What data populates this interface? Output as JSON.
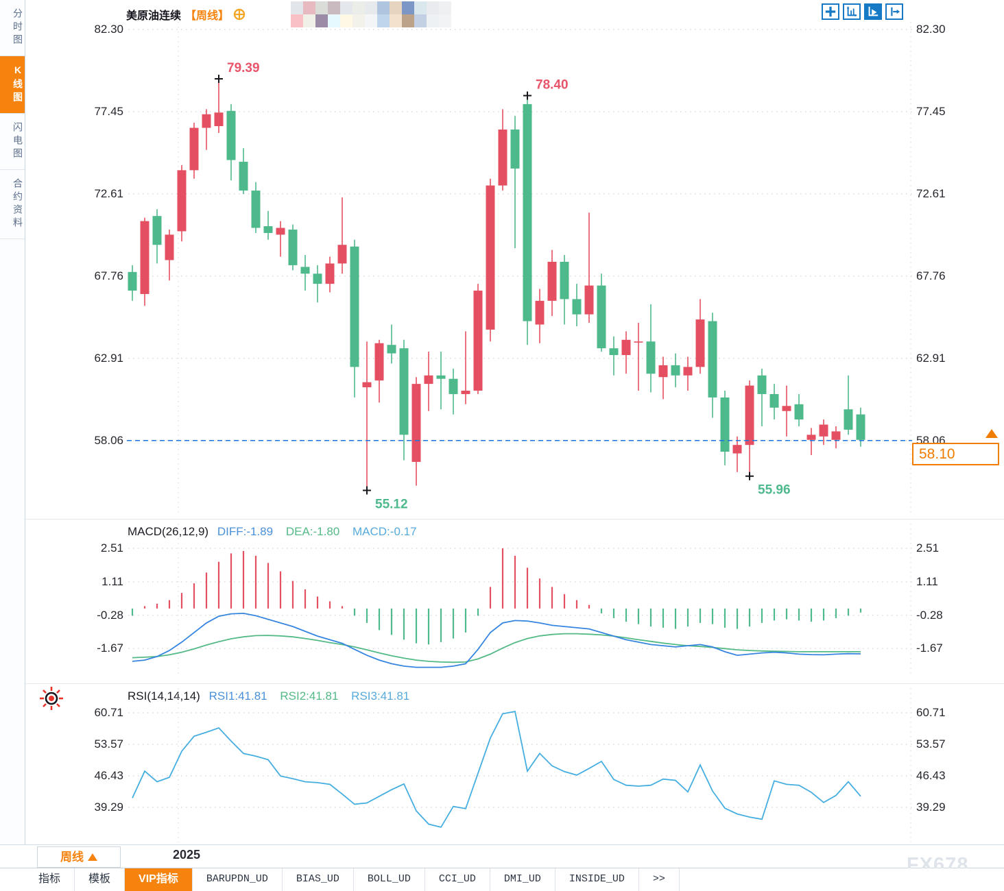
{
  "sidebar": {
    "tabs": [
      {
        "label": "分时图",
        "active": false
      },
      {
        "label": "K线图",
        "active": true
      },
      {
        "label": "闪电图",
        "active": false
      },
      {
        "label": "合约资料",
        "active": false
      }
    ]
  },
  "header": {
    "title": "美原油连续",
    "period": "【周线】"
  },
  "toolbar": {
    "icons": [
      "move-tool",
      "axis-scale-tool",
      "axis-play-tool",
      "send-right-tool"
    ],
    "active_icon": "axis-play-tool"
  },
  "price_box": {
    "value": "58.10"
  },
  "macd_header": {
    "name": "MACD(26,12,9)",
    "diff": "DIFF:-1.89",
    "dea": "DEA:-1.80",
    "macd": "MACD:-0.17"
  },
  "rsi_header": {
    "name": "RSI(14,14,14)",
    "rsi1": "RSI1:41.81",
    "rsi2": "RSI2:41.81",
    "rsi3": "RSI3:41.81"
  },
  "footer": {
    "timeframe_button": {
      "label": "周线"
    },
    "year_label": "2025",
    "tabs": [
      "指标",
      "模板",
      "VIP指标",
      "BARUPDN_UD",
      "BIAS_UD",
      "BOLL_UD",
      "CCI_UD",
      "DMI_UD",
      "INSIDE_UD",
      ">>"
    ],
    "active_tab": "VIP指标",
    "watermark": "FX678"
  },
  "colors": {
    "up": "#e45061",
    "down": "#4eb98b",
    "diff_line": "#3585e0",
    "dea_line": "#53b987",
    "rsi_line": "#45aee0",
    "accent_orange": "#f5830d",
    "current_price_line": "#1a73e2",
    "annotation_red": "#e8546a",
    "annotation_green": "#4db98c",
    "toolbar_blue": "#1679c6",
    "grid": "#d9d9d9"
  },
  "redacted_mosaic": {
    "colors": [
      "#e2e5ea",
      "#e7b9c0",
      "#d9dcd7",
      "#c9bac0",
      "#e4e7ec",
      "#eaede8",
      "#e7eaed",
      "#afc5df",
      "#e7d4be",
      "#7c97c5",
      "#dae8ed",
      "#e9ebee",
      "#eef0f2",
      "#f9c1c5",
      "#f1f0e7",
      "#9c8ba7",
      "#e6f9fe",
      "#fef9e4",
      "#f2f1ea",
      "#f4f5f7",
      "#bed5eb",
      "#f3e1cd",
      "#bca289",
      "#c3d0e4",
      "#eef1f4",
      "#f1f3f5"
    ]
  },
  "chart_data": {
    "type": "candlestick",
    "title": "美原油连续 周线 (US Crude Oil Continuous, Weekly)",
    "price_ticks": [
      82.3,
      77.45,
      72.61,
      67.76,
      62.91,
      58.06
    ],
    "current_price": 58.1,
    "current_price_line": 58.06,
    "candles_ohlc": [
      [
        68.0,
        68.4,
        66.3,
        66.9
      ],
      [
        66.7,
        71.2,
        66.0,
        71.0
      ],
      [
        71.3,
        71.7,
        68.5,
        69.6
      ],
      [
        68.7,
        70.5,
        67.5,
        70.2
      ],
      [
        70.4,
        74.3,
        69.8,
        74.0
      ],
      [
        74.0,
        76.8,
        73.5,
        76.5
      ],
      [
        76.5,
        77.6,
        75.2,
        77.3
      ],
      [
        76.6,
        79.39,
        76.2,
        77.4
      ],
      [
        77.5,
        77.9,
        73.4,
        74.6
      ],
      [
        74.5,
        75.3,
        72.6,
        72.8
      ],
      [
        72.8,
        73.3,
        70.3,
        70.6
      ],
      [
        70.7,
        71.6,
        69.9,
        70.3
      ],
      [
        70.2,
        71.0,
        68.9,
        70.6
      ],
      [
        70.5,
        70.8,
        68.1,
        68.4
      ],
      [
        68.3,
        69.0,
        66.9,
        67.9
      ],
      [
        67.9,
        68.4,
        66.2,
        67.3
      ],
      [
        67.3,
        68.9,
        66.8,
        68.5
      ],
      [
        68.5,
        72.4,
        67.9,
        69.6
      ],
      [
        69.5,
        69.9,
        60.6,
        62.4
      ],
      [
        61.2,
        63.9,
        55.12,
        61.5
      ],
      [
        61.6,
        64.0,
        60.3,
        63.8
      ],
      [
        63.7,
        64.9,
        62.6,
        63.2
      ],
      [
        63.5,
        64.0,
        56.9,
        58.4
      ],
      [
        56.8,
        61.8,
        55.4,
        61.4
      ],
      [
        61.4,
        63.3,
        59.8,
        61.9
      ],
      [
        61.9,
        63.3,
        59.9,
        61.7
      ],
      [
        61.7,
        62.3,
        59.6,
        60.8
      ],
      [
        60.8,
        64.5,
        60.2,
        61.0
      ],
      [
        61.0,
        67.3,
        60.8,
        66.9
      ],
      [
        64.6,
        73.5,
        63.9,
        73.1
      ],
      [
        73.1,
        77.6,
        72.8,
        76.4
      ],
      [
        76.4,
        77.2,
        69.4,
        74.1
      ],
      [
        77.9,
        78.4,
        63.7,
        65.1
      ],
      [
        64.9,
        67.0,
        63.8,
        66.3
      ],
      [
        66.3,
        69.3,
        65.4,
        68.6
      ],
      [
        68.6,
        69.0,
        64.9,
        66.4
      ],
      [
        66.4,
        67.3,
        64.8,
        65.5
      ],
      [
        65.5,
        71.5,
        65.0,
        67.2
      ],
      [
        67.2,
        67.9,
        63.3,
        63.5
      ],
      [
        63.5,
        64.2,
        61.9,
        63.1
      ],
      [
        63.1,
        64.5,
        62.0,
        64.0
      ],
      [
        63.9,
        65.0,
        61.0,
        63.9
      ],
      [
        63.9,
        66.1,
        60.9,
        62.0
      ],
      [
        61.8,
        63.0,
        60.5,
        62.5
      ],
      [
        62.5,
        63.2,
        61.2,
        61.9
      ],
      [
        61.9,
        63.0,
        61.0,
        62.4
      ],
      [
        62.4,
        66.4,
        62.0,
        65.2
      ],
      [
        65.1,
        65.6,
        59.4,
        60.6
      ],
      [
        60.6,
        61.0,
        56.6,
        57.4
      ],
      [
        57.3,
        58.3,
        56.2,
        57.8
      ],
      [
        57.8,
        61.6,
        55.96,
        61.3
      ],
      [
        61.9,
        62.3,
        58.9,
        60.8
      ],
      [
        60.8,
        61.4,
        59.3,
        60.0
      ],
      [
        59.8,
        61.3,
        58.3,
        60.1
      ],
      [
        60.2,
        60.8,
        58.9,
        59.3
      ],
      [
        58.1,
        58.8,
        57.2,
        58.4
      ],
      [
        58.3,
        59.3,
        57.8,
        59.0
      ],
      [
        58.1,
        58.9,
        57.6,
        58.6
      ],
      [
        59.9,
        61.9,
        58.4,
        58.7
      ],
      [
        59.6,
        60.0,
        57.7,
        58.1
      ]
    ],
    "annotations": [
      {
        "text": "79.39",
        "candle": 7,
        "at": "high",
        "color": "red"
      },
      {
        "text": "78.40",
        "candle": 32,
        "at": "high",
        "color": "red"
      },
      {
        "text": "55.12",
        "candle": 19,
        "at": "low",
        "color": "green"
      },
      {
        "text": "55.96",
        "candle": 50,
        "at": "low",
        "color": "green"
      }
    ],
    "macd": {
      "params": "(26,12,9)",
      "ticks": [
        2.51,
        1.11,
        -0.28,
        -1.67
      ],
      "diff_last": -1.89,
      "dea_last": -1.8,
      "macd_last": -0.17,
      "diff": [
        -2.2,
        -2.15,
        -2.0,
        -1.75,
        -1.4,
        -1.0,
        -0.6,
        -0.32,
        -0.22,
        -0.2,
        -0.3,
        -0.45,
        -0.6,
        -0.75,
        -0.95,
        -1.15,
        -1.3,
        -1.45,
        -1.7,
        -1.95,
        -2.15,
        -2.3,
        -2.4,
        -2.45,
        -2.45,
        -2.45,
        -2.4,
        -2.3,
        -1.7,
        -1.0,
        -0.6,
        -0.5,
        -0.52,
        -0.6,
        -0.7,
        -0.75,
        -0.8,
        -0.85,
        -1.0,
        -1.15,
        -1.3,
        -1.4,
        -1.5,
        -1.55,
        -1.6,
        -1.55,
        -1.5,
        -1.6,
        -1.8,
        -1.95,
        -1.9,
        -1.85,
        -1.82,
        -1.85,
        -1.9,
        -1.92,
        -1.93,
        -1.9,
        -1.88,
        -1.89
      ],
      "dea": [
        -2.05,
        -2.03,
        -2.0,
        -1.93,
        -1.82,
        -1.68,
        -1.52,
        -1.38,
        -1.26,
        -1.18,
        -1.13,
        -1.12,
        -1.14,
        -1.18,
        -1.25,
        -1.33,
        -1.42,
        -1.5,
        -1.6,
        -1.72,
        -1.85,
        -1.97,
        -2.07,
        -2.15,
        -2.2,
        -2.23,
        -2.24,
        -2.23,
        -2.1,
        -1.9,
        -1.65,
        -1.42,
        -1.25,
        -1.14,
        -1.08,
        -1.05,
        -1.05,
        -1.07,
        -1.1,
        -1.15,
        -1.22,
        -1.3,
        -1.37,
        -1.44,
        -1.5,
        -1.55,
        -1.58,
        -1.62,
        -1.67,
        -1.72,
        -1.75,
        -1.77,
        -1.78,
        -1.79,
        -1.8,
        -1.8,
        -1.8,
        -1.8,
        -1.8,
        -1.8
      ],
      "hist": [
        -0.3,
        0.1,
        0.2,
        0.35,
        0.65,
        1.05,
        1.5,
        1.95,
        2.3,
        2.4,
        2.2,
        1.9,
        1.55,
        1.15,
        0.8,
        0.5,
        0.3,
        0.1,
        -0.3,
        -0.6,
        -0.9,
        -1.1,
        -1.3,
        -1.45,
        -1.5,
        -1.4,
        -1.25,
        -1.0,
        -0.3,
        0.9,
        2.51,
        2.2,
        1.7,
        1.25,
        0.9,
        0.6,
        0.35,
        0.15,
        -0.2,
        -0.4,
        -0.55,
        -0.65,
        -0.75,
        -0.8,
        -0.85,
        -0.75,
        -0.6,
        -0.65,
        -0.8,
        -0.85,
        -0.75,
        -0.6,
        -0.5,
        -0.45,
        -0.5,
        -0.55,
        -0.5,
        -0.4,
        -0.3,
        -0.17
      ]
    },
    "rsi": {
      "params": "(14,14,14)",
      "ticks": [
        60.71,
        53.57,
        46.43,
        39.29
      ],
      "rsi1_last": 41.81,
      "rsi2_last": 41.81,
      "rsi3_last": 41.81,
      "values": [
        41.4,
        47.5,
        45.1,
        46.1,
        52.0,
        55.4,
        56.3,
        57.3,
        54.3,
        51.5,
        50.9,
        50.1,
        46.4,
        45.8,
        45.1,
        44.9,
        44.5,
        42.3,
        40.0,
        40.3,
        41.8,
        43.3,
        44.6,
        38.5,
        35.5,
        34.8,
        39.5,
        39.0,
        47.0,
        55.0,
        60.5,
        61.0,
        47.5,
        51.5,
        48.7,
        47.4,
        46.6,
        48.1,
        49.7,
        45.6,
        44.3,
        44.1,
        44.3,
        45.7,
        45.4,
        42.8,
        48.9,
        43.0,
        39.1,
        37.8,
        37.1,
        36.6,
        45.3,
        44.5,
        44.3,
        42.7,
        40.4,
        42.0,
        45.1,
        41.81
      ]
    },
    "x_axis": {
      "year_label": "2025",
      "year_gridline_candle": 4
    },
    "grid": true,
    "legend_position": "top-left"
  }
}
